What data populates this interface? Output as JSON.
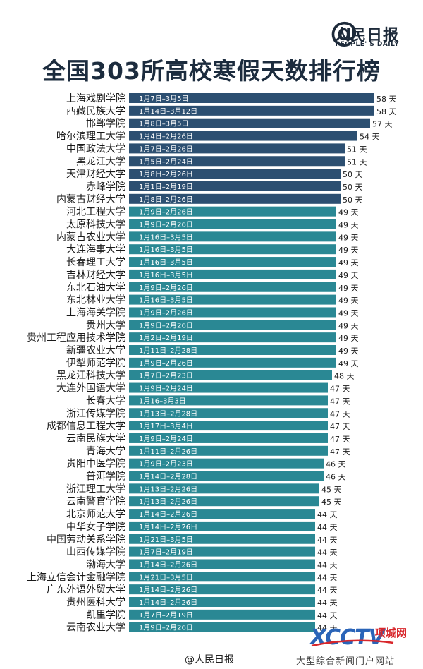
{
  "brand": {
    "at": "@",
    "name_cn": "人民日报",
    "name_en": "PEOPLE' S DAILY"
  },
  "footer": {
    "weibo": "@人民日报",
    "site_text": "大型综合新闻门户网站",
    "xcctv": "XCCTV",
    "xcctv_site": "项城网"
  },
  "colors": {
    "dark": "#2c4f71",
    "teal": "#2a8894",
    "text": "#1a1a1a"
  },
  "chart_data": {
    "type": "bar",
    "orientation": "horizontal",
    "title": "全国303所高校寒假天数排行榜",
    "unit_label": "天",
    "xlim": [
      0,
      58
    ],
    "categories": [
      "上海戏剧学院",
      "西藏民族大学",
      "邯郸学院",
      "哈尔滨理工大学",
      "中国政法大学",
      "黑龙江大学",
      "天津财经大学",
      "赤峰学院",
      "内蒙古财经大学",
      "河北工程大学",
      "太原科技大学",
      "内蒙古农业大学",
      "大连海事大学",
      "长春理工大学",
      "吉林财经大学",
      "东北石油大学",
      "东北林业大学",
      "上海海关学院",
      "贵州大学",
      "贵州工程应用技术学院",
      "新疆农业大学",
      "伊犁师范学院",
      "黑龙江科技大学",
      "大连外国语大学",
      "长春大学",
      "浙江传媒学院",
      "成都信息工程大学",
      "云南民族大学",
      "青海大学",
      "贵阳中医学院",
      "普洱学院",
      "浙江理工大学",
      "云南警官学院",
      "北京师范大学",
      "中华女子学院",
      "中国劳动关系学院",
      "山西传媒学院",
      "渤海大学",
      "上海立信会计金融学院",
      "广东外语外贸大学",
      "贵州医科大学",
      "凯里学院",
      "云南农业大学"
    ],
    "date_ranges": [
      "1月7日–3月5日",
      "1月14日–3月12日",
      "1月8日–3月5日",
      "1月4日–2月26日",
      "1月7日–2月26日",
      "1月5日–2月24日",
      "1月8日–2月26日",
      "1月1日–2月19日",
      "1月8日–2月26日",
      "1月9日–2月26日",
      "1月9日–2月26日",
      "1月16日–3月5日",
      "1月16日–3月5日",
      "1月16日–3月5日",
      "1月16日–3月5日",
      "1月9日–2月26日",
      "1月16日–3月5日",
      "1月9日–2月26日",
      "1月9日–2月26日",
      "1月2日–2月19日",
      "1月11日–2月28日",
      "1月9日–2月26日",
      "1月7日–2月23日",
      "1月9日–2月24日",
      "1月16–3月3日",
      "1月13日–2月28日",
      "1月17日–3月4日",
      "1月9日–2月24日",
      "1月11日–2月26日",
      "1月9日–2月23日",
      "1月14日–2月28日",
      "1月13日–2月26日",
      "1月13日–2月26日",
      "1月14日–2月26日",
      "1月14日–2月26日",
      "1月21日–3月5日",
      "1月7日–2月19日",
      "1月14日–2月26日",
      "1月21日–3月5日",
      "1月14日–2月26日",
      "1月14日–2月26日",
      "1月7日–2月19日",
      "1月9日–2月26日"
    ],
    "values": [
      58,
      58,
      57,
      54,
      51,
      51,
      50,
      50,
      50,
      49,
      49,
      49,
      49,
      49,
      49,
      49,
      49,
      49,
      49,
      49,
      49,
      49,
      48,
      47,
      47,
      47,
      47,
      47,
      47,
      46,
      46,
      45,
      45,
      44,
      44,
      44,
      44,
      44,
      44,
      44,
      44,
      44,
      44
    ],
    "value_labels": [
      "58 天",
      "58 天",
      "57 天",
      "54 天",
      "51 天",
      "51 天",
      "50 天",
      "50 天",
      "50 天",
      "49 天",
      "49 天",
      "49 天",
      "49 天",
      "49 天",
      "49 天",
      "49 天",
      "49 天",
      "49 天",
      "49 天",
      "49 天",
      "49 天",
      "49 天",
      "48 天",
      "47 天",
      "47 天",
      "47 天",
      "47 天",
      "47 天",
      "47 天",
      "46 天",
      "46 天",
      "45 天",
      "45 天",
      "44 天",
      "44 天",
      "44 天",
      "44 天",
      "44 天",
      "44 天",
      "44 天",
      "44 天",
      "44 天",
      "44 天"
    ]
  }
}
